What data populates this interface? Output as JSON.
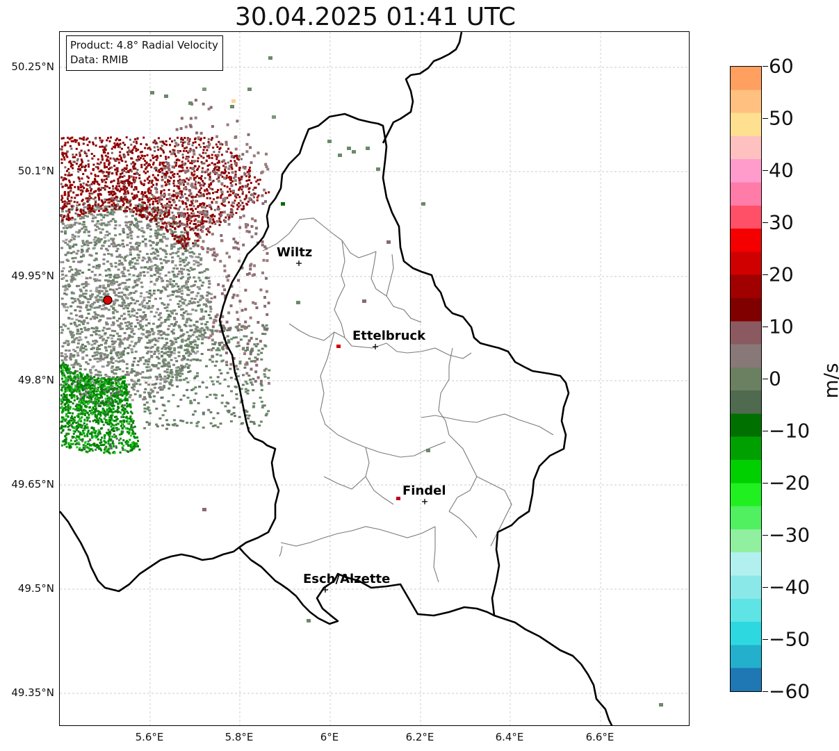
{
  "title": "30.04.2025 01:41 UTC",
  "info": {
    "product": "Product: 4.8° Radial Velocity",
    "data": "Data: RMIB"
  },
  "lat_ticks": [
    "50.25°N",
    "50.1°N",
    "49.95°N",
    "49.8°N",
    "49.65°N",
    "49.5°N",
    "49.35°N"
  ],
  "lon_ticks": [
    "5.6°E",
    "5.8°E",
    "6°E",
    "6.2°E",
    "6.4°E",
    "6.6°E"
  ],
  "colorbar": {
    "unit": "m/s",
    "min": -60,
    "max": 60,
    "ticks": [
      "60",
      "50",
      "40",
      "30",
      "20",
      "10",
      "0",
      "−10",
      "−20",
      "−30",
      "−40",
      "−50",
      "−60"
    ],
    "colors_bottom_to_top": [
      "#1f77b4",
      "#22b0cc",
      "#2ed8e0",
      "#5ee4e4",
      "#8ae8e8",
      "#b2f0f0",
      "#90f0a0",
      "#50f060",
      "#20f020",
      "#00d000",
      "#00a000",
      "#007000",
      "#506a50",
      "#6a8060",
      "#887878",
      "#8a5a60",
      "#800000",
      "#a00000",
      "#d00000",
      "#f40000",
      "#ff5068",
      "#ff7ca8",
      "#ff9ccc",
      "#ffc0c0",
      "#ffe090",
      "#ffc080",
      "#ffa060"
    ]
  },
  "cities": [
    {
      "name": "Wiltz"
    },
    {
      "name": "Ettelbruck"
    },
    {
      "name": "Findel"
    },
    {
      "name": "Esch/Alzette"
    }
  ],
  "radar_site": {
    "color": "#e00000"
  }
}
